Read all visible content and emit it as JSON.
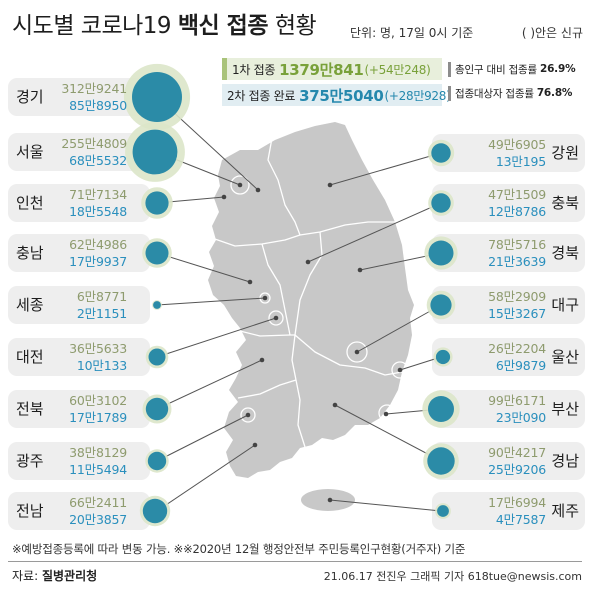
{
  "header": {
    "title_lead": "시도별 코로나19",
    "title_bold": "백신 접종",
    "title_tail": "현황",
    "unit_note": "단위: 명, 17일 0시 기준",
    "new_note": "( )안은 신규"
  },
  "summary": {
    "first": {
      "label": "1차 접종",
      "value": "1379만841",
      "new": "(+54만248)"
    },
    "second": {
      "label": "2차 접종 완료",
      "value": "375만5040",
      "new": "(+28만928)"
    }
  },
  "rates": {
    "total_population": {
      "label": "총인구 대비 접종률",
      "value": "26.9%"
    },
    "eligible": {
      "label": "접종대상자 접종률",
      "value": "76.8%"
    }
  },
  "regions_left": [
    {
      "name": "경기",
      "first_dose": "312만9241",
      "second_dose": "85만8950"
    },
    {
      "name": "서울",
      "first_dose": "255만4809",
      "second_dose": "68만5532"
    },
    {
      "name": "인천",
      "first_dose": "71만7134",
      "second_dose": "18만5548"
    },
    {
      "name": "충남",
      "first_dose": "62만4986",
      "second_dose": "17만9937"
    },
    {
      "name": "세종",
      "first_dose": "6만8771",
      "second_dose": "2만1151"
    },
    {
      "name": "대전",
      "first_dose": "36만5633",
      "second_dose": "10만133"
    },
    {
      "name": "전북",
      "first_dose": "60만3102",
      "second_dose": "17만1789"
    },
    {
      "name": "광주",
      "first_dose": "38만8129",
      "second_dose": "11만5494"
    },
    {
      "name": "전남",
      "first_dose": "66만2411",
      "second_dose": "20만3857"
    }
  ],
  "regions_right": [
    {
      "name": "강원",
      "first_dose": "49만6905",
      "second_dose": "13만195"
    },
    {
      "name": "충북",
      "first_dose": "47만1509",
      "second_dose": "12만8786"
    },
    {
      "name": "경북",
      "first_dose": "78만5716",
      "second_dose": "21만3639"
    },
    {
      "name": "대구",
      "first_dose": "58만2909",
      "second_dose": "15만3267"
    },
    {
      "name": "울산",
      "first_dose": "26만2204",
      "second_dose": "6만9879"
    },
    {
      "name": "부산",
      "first_dose": "99만6171",
      "second_dose": "23만090"
    },
    {
      "name": "경남",
      "first_dose": "90만4217",
      "second_dose": "25만9206"
    },
    {
      "name": "제주",
      "first_dose": "17만6994",
      "second_dose": "4만7587"
    }
  ],
  "footer": {
    "footnote": "※예방접종등록에 따라 변동 가능. ※※2020년 12월 행정안전부 주민등록인구현황(거주자) 기준",
    "source_label": "자료:",
    "source": "질병관리청",
    "credit": "21.06.17 전진우 그래픽 기자 618tue@newsis.com"
  },
  "colors": {
    "first_dose_bubble": "#dbe6c9",
    "second_dose_bubble": "#2b8ba7",
    "first_dose_text": "#8e9b6e",
    "second_dose_text": "#2a8fbd",
    "map_fill": "#c8c8c8"
  }
}
